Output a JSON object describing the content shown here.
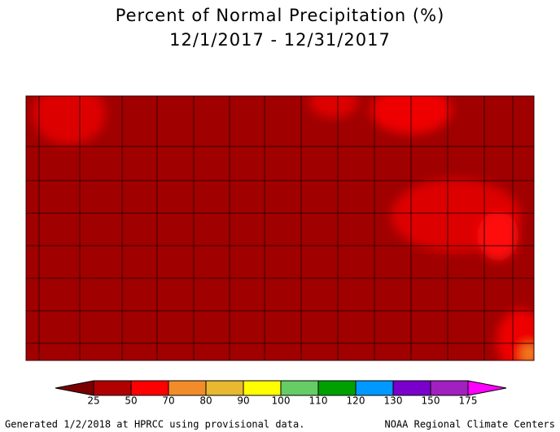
{
  "title": "Percent of Normal Precipitation (%)",
  "date_range": "12/1/2017 - 12/31/2017",
  "legend": {
    "ticks": [
      25,
      50,
      70,
      80,
      90,
      100,
      110,
      120,
      130,
      150,
      175
    ],
    "colors": [
      "#7a0000",
      "#b00000",
      "#ff0000",
      "#f28c28",
      "#e8b830",
      "#ffff00",
      "#66cc66",
      "#00a000",
      "#0099ff",
      "#7a00cc",
      "#a020c0",
      "#ff00ff"
    ]
  },
  "footer": {
    "left": "Generated 1/2/2018 at HPRCC using provisional data.",
    "right": "NOAA Regional Climate Centers"
  }
}
